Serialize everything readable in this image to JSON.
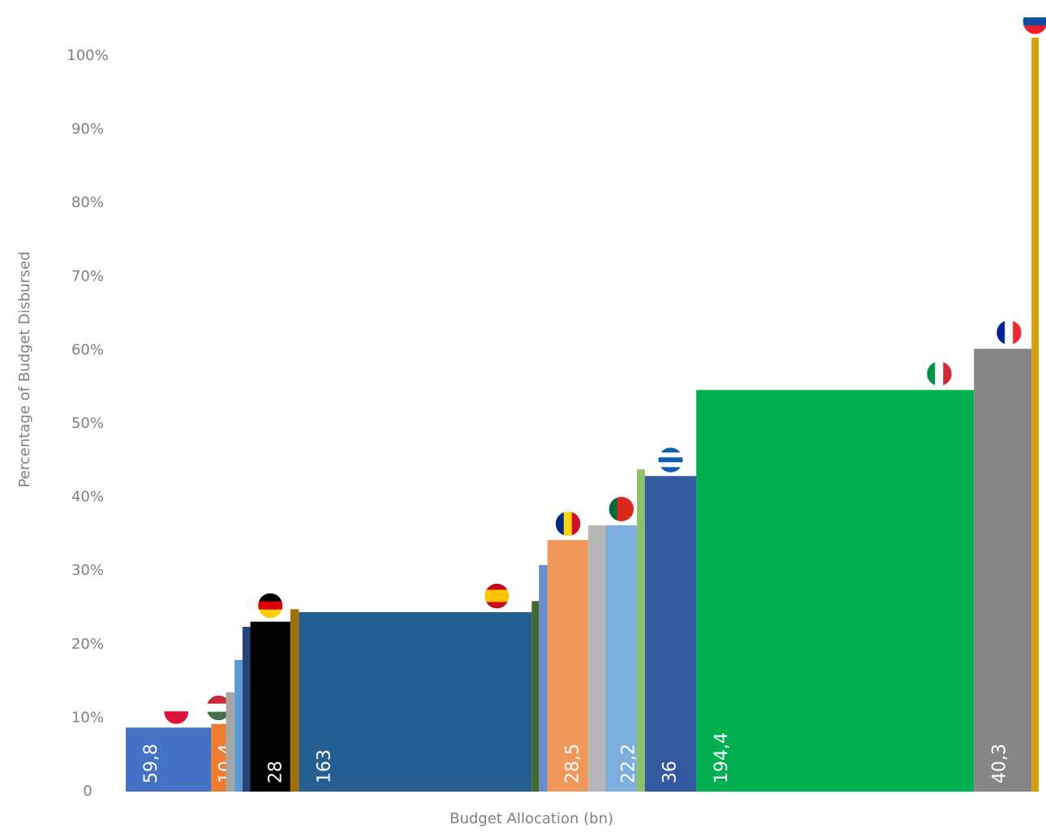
{
  "chart_data": {
    "type": "variwide",
    "x_label": "Budget Allocation (bn)",
    "y_label": "Percentage of Budget Disbursed",
    "widths": [
      59.8,
      10.4,
      6,
      5.5,
      5.5,
      28,
      6,
      163,
      5,
      6,
      28.5,
      12,
      22.2,
      5.5,
      36,
      194.4,
      40.3,
      5
    ],
    "width_labels": [
      "59,8",
      "10,4",
      null,
      null,
      null,
      "28",
      null,
      "163",
      null,
      null,
      "28,5",
      null,
      "22,2",
      null,
      "36",
      "194,4",
      "40,3",
      null
    ],
    "values": [
      8.7,
      9.2,
      13.5,
      17.9,
      22.4,
      23.1,
      24.8,
      24.4,
      25.9,
      30.8,
      34.2,
      36.2,
      36.2,
      43.8,
      42.9,
      54.6,
      60.2,
      102.5
    ],
    "colors": [
      "#4472c4",
      "#ed7d31",
      "#a5a5a5",
      "#5b9bd5",
      "#264478",
      "#000000",
      "#9e7008",
      "#255e91",
      "#43682b",
      "#698ed0",
      "#f1975a",
      "#b7b7b7",
      "#7cafdd",
      "#8cc168",
      "#335aa1",
      "#00b050",
      "#868686",
      "#d4a00a"
    ],
    "ylim": [
      0,
      100
    ],
    "yticks": [
      0,
      {
        "value": 10,
        "label": "10%"
      },
      {
        "value": 20,
        "label": "20%"
      },
      {
        "value": 30,
        "label": "30%"
      },
      {
        "value": 40,
        "label": "40%"
      },
      {
        "value": 50,
        "label": "50%"
      },
      {
        "value": 60,
        "label": "60%"
      },
      {
        "value": 70,
        "label": "70%"
      },
      {
        "value": 80,
        "label": "80%"
      },
      {
        "value": 90,
        "label": "90%"
      },
      {
        "value": 100,
        "label": "100%"
      }
    ],
    "grid": false
  }
}
